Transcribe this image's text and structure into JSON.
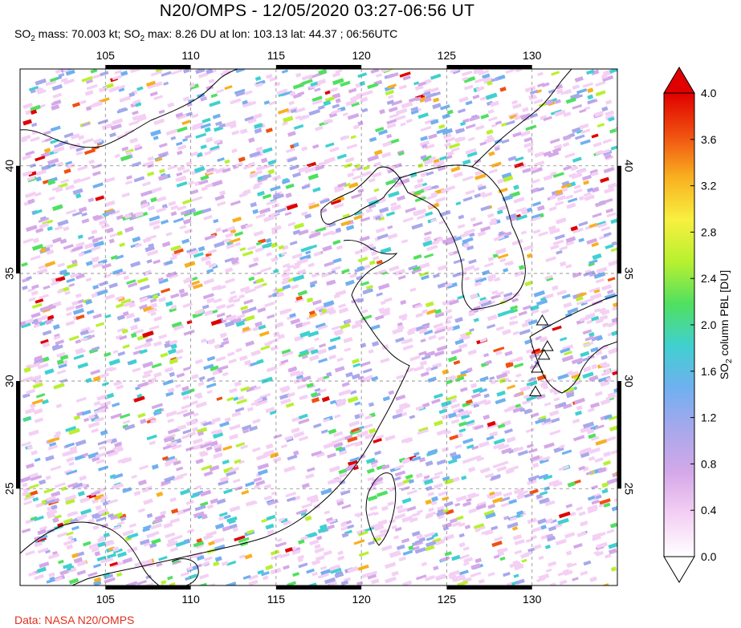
{
  "title": "N20/OMPS - 12/05/2020 03:27-06:56 UT",
  "subtitle": {
    "mass_prefix": "SO",
    "mass_sub": "2",
    "mass_text": " mass: 70.003 kt; SO",
    "max_sub": "2",
    "max_text": " max: 8.26 DU at lon: 103.13 lat: 44.37 ; 06:56UTC"
  },
  "credit": "Data: NASA N20/OMPS",
  "map": {
    "lon_ticks": [
      "105",
      "110",
      "115",
      "120",
      "125",
      "130"
    ],
    "lat_ticks": [
      "40",
      "35",
      "30",
      "25"
    ],
    "lon_range": [
      100.0,
      135.0
    ],
    "lat_range": [
      20.5,
      44.5
    ]
  },
  "colorbar": {
    "label_prefix": "SO",
    "label_sub": "2",
    "label_suffix": " column PBL [DU]",
    "ticks": [
      "4.0",
      "3.6",
      "3.2",
      "2.8",
      "2.4",
      "2.0",
      "1.6",
      "1.2",
      "0.8",
      "0.4",
      "0.0"
    ],
    "range": [
      0.0,
      4.0
    ],
    "colors": [
      "#ffffff",
      "#f4d0f4",
      "#d4a8e8",
      "#a8a8ec",
      "#70b0f0",
      "#40d0d0",
      "#50e060",
      "#b8f030",
      "#f8f040",
      "#f8b020",
      "#f05010",
      "#e00000"
    ]
  },
  "volcanoes": [
    {
      "lon": 130.6,
      "lat": 32.8
    },
    {
      "lon": 130.9,
      "lat": 31.6
    },
    {
      "lon": 130.7,
      "lat": 31.2
    },
    {
      "lon": 130.3,
      "lat": 30.6
    },
    {
      "lon": 130.2,
      "lat": 29.5
    }
  ]
}
